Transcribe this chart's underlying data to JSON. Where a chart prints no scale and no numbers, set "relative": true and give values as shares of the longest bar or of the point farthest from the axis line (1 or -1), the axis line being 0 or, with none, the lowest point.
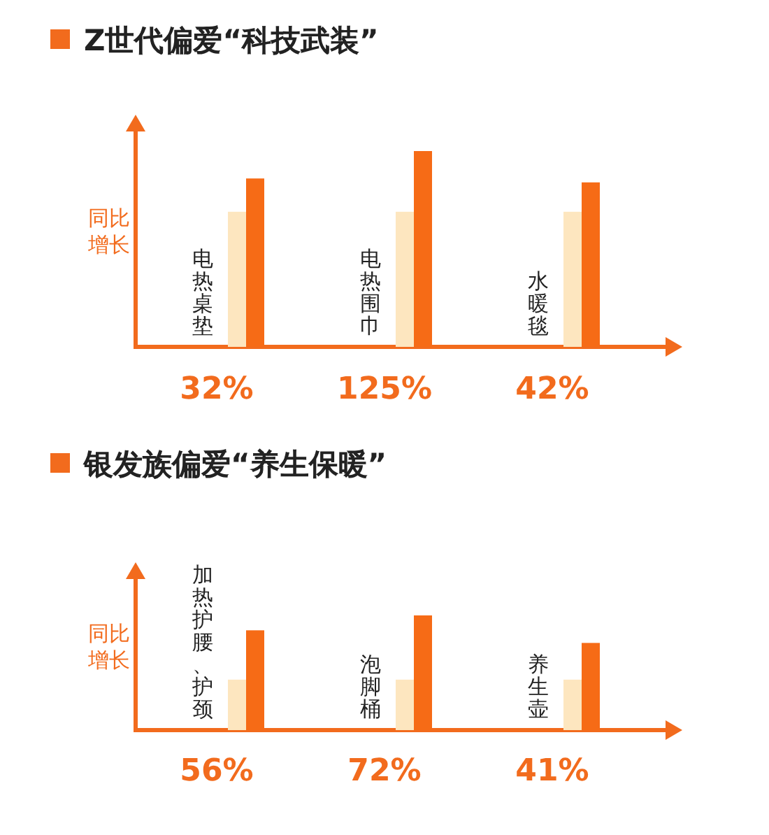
{
  "chart_data": [
    {
      "type": "bar",
      "title": "Z世代偏爱“科技武装”",
      "ylabel": "同比增长",
      "relative": true,
      "categories": [
        "电热桌垫",
        "电热围巾",
        "水暖毯"
      ],
      "series": [
        {
          "color": "#fde6bf",
          "values": [
            0.69,
            0.69,
            0.69
          ]
        },
        {
          "color": "#f66b16",
          "values": [
            0.86,
            1,
            0.84
          ]
        }
      ],
      "annotations": [
        "32%",
        "125%",
        "42%"
      ]
    },
    {
      "type": "bar",
      "title": "银发族偏爱“养生保暖”",
      "ylabel": "同比增长",
      "relative": true,
      "categories": [
        "加热护腰、护颈",
        "泡脚桶",
        "养生壶"
      ],
      "series": [
        {
          "color": "#fde6bf",
          "values": [
            0.44,
            0.44,
            0.44
          ]
        },
        {
          "color": "#f66b16",
          "values": [
            0.87,
            1,
            0.76
          ]
        }
      ],
      "annotations": [
        "56%",
        "72%",
        "41%"
      ]
    }
  ]
}
